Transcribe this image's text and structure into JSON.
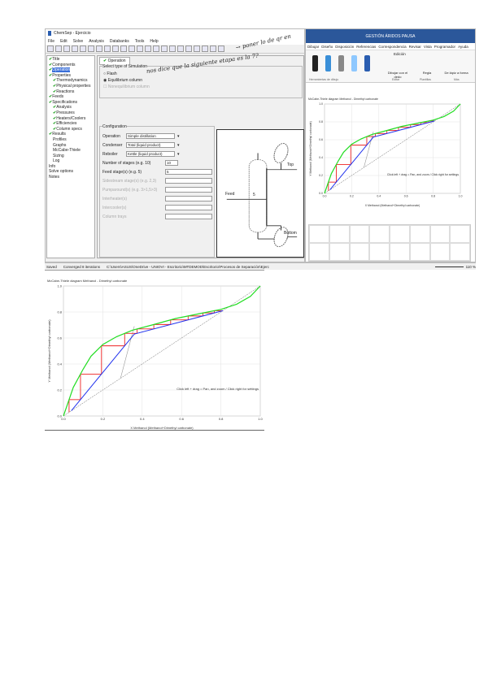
{
  "app": {
    "title": "ChemSep - Ejercicio",
    "menu": [
      "File",
      "Edit",
      "Solve",
      "Analysis",
      "Databanks",
      "Tools",
      "Help"
    ],
    "tree": [
      {
        "l": "Title",
        "c": 1,
        "d": 0
      },
      {
        "l": "Components",
        "c": 1,
        "d": 0
      },
      {
        "l": "Operation",
        "c": 1,
        "d": 0,
        "s": 1
      },
      {
        "l": "Properties",
        "c": 1,
        "d": 0
      },
      {
        "l": "Thermodynamics",
        "c": 1,
        "d": 1
      },
      {
        "l": "Physical properties",
        "c": 1,
        "d": 1
      },
      {
        "l": "Reactions",
        "c": 1,
        "d": 1
      },
      {
        "l": "Feeds",
        "c": 1,
        "d": 0
      },
      {
        "l": "Specifications",
        "c": 1,
        "d": 0
      },
      {
        "l": "Analysis",
        "c": 1,
        "d": 1
      },
      {
        "l": "Pressures",
        "c": 1,
        "d": 1
      },
      {
        "l": "Heaters/Coolers",
        "c": 1,
        "d": 1
      },
      {
        "l": "Efficiencies",
        "c": 1,
        "d": 1
      },
      {
        "l": "Column specs",
        "c": 1,
        "d": 1
      },
      {
        "l": "Results",
        "c": 1,
        "d": 0
      },
      {
        "l": "Profiles",
        "c": 0,
        "d": 1
      },
      {
        "l": "Graphs",
        "c": 0,
        "d": 1
      },
      {
        "l": "McCabe-Thiele",
        "c": 0,
        "d": 1
      },
      {
        "l": "Sizing",
        "c": 0,
        "d": 1
      },
      {
        "l": "Log",
        "c": 0,
        "d": 1
      },
      {
        "l": "Info",
        "c": 0,
        "d": 0
      },
      {
        "l": "Solve options",
        "c": 0,
        "d": 0
      },
      {
        "l": "Notes",
        "c": 0,
        "d": 0
      }
    ],
    "tab": "Operation",
    "type_group": "Select type of Simulation",
    "radios": [
      "Flash",
      "Equilibrium column",
      "Nonequilibrium column"
    ],
    "config_group": "Configuration",
    "fields": [
      {
        "label": "Operation",
        "value": "Simple distillation",
        "kind": "select"
      },
      {
        "label": "Condenser",
        "value": "Total (liquid product)",
        "kind": "select"
      },
      {
        "label": "Reboiler",
        "value": "Kettle (liquid product)",
        "kind": "select"
      },
      {
        "label": "Number of stages (e.g. 10)",
        "value": "10",
        "kind": "short"
      },
      {
        "label": "Feed stage(s) (e.g. 5)",
        "value": "5",
        "kind": "text"
      },
      {
        "label": "Sidestream stage(s) (e.g. 2,3)",
        "value": "",
        "kind": "text",
        "dis": 1
      },
      {
        "label": "Pumparound(s) (e.g. 3>1,5>3)",
        "value": "",
        "kind": "text",
        "dis": 1
      },
      {
        "label": "Interheater(s)",
        "value": "",
        "kind": "text",
        "dis": 1
      },
      {
        "label": "Intercooler(s)",
        "value": "",
        "kind": "text",
        "dis": 1
      },
      {
        "label": "Column trays",
        "value": "",
        "kind": "text",
        "dis": 1
      }
    ],
    "diagram": {
      "feed": "Feed",
      "top": "Top",
      "bottom": "Bottom",
      "stage": "5"
    }
  },
  "status": {
    "state": "Saved",
    "msg": "Converged 8 iterations",
    "path": "C:\\Users\\ASUS\\OneDrive - UNIOVI - Escritorio\\MTDEMOD\\Escritorio\\Procesos de Separación\\Ejercicio.sep",
    "zoom": "110 %"
  },
  "word": {
    "title": "GESTIÓN ÁRIDOS PAUSA",
    "tabs": [
      "Dibujar",
      "Diseño",
      "Disposición",
      "Referencias",
      "Correspondencia",
      "Revisar",
      "Vista",
      "Programador",
      "Ayuda"
    ],
    "editing": "Edición",
    "buttons": [
      "Dibujar con el dedo",
      "Regla",
      "De lápiz a forma"
    ],
    "groups": [
      "Herramientas de dibujo",
      "Editar",
      "Plantillas",
      "Más"
    ]
  },
  "notes": [
    "→ poner lo de qr en",
    "nos dice que la siguiente etapa es la 7?"
  ],
  "chart_data": [
    {
      "type": "line",
      "title": "McCabe-Thiele diagram Methanol - Dimethyl carbonate",
      "xlabel": "X Methanol (Methanol+Dimethyl carbonate)",
      "ylabel": "Y Methanol (Methanol+Dimethyl carbonate)",
      "xlim": [
        0,
        1
      ],
      "ylim": [
        0,
        1
      ],
      "ticks": [
        "0.0",
        "0.2",
        "0.4",
        "0.6",
        "0.8",
        "1.0"
      ],
      "info": "Click left + drag = Pan, and zoom / Click right for settings",
      "equilibrium": [
        [
          0,
          0
        ],
        [
          0.05,
          0.22
        ],
        [
          0.1,
          0.36
        ],
        [
          0.14,
          0.46
        ],
        [
          0.2,
          0.55
        ],
        [
          0.27,
          0.61
        ],
        [
          0.35,
          0.66
        ],
        [
          0.45,
          0.7
        ],
        [
          0.57,
          0.75
        ],
        [
          0.7,
          0.79
        ],
        [
          0.8,
          0.82
        ],
        [
          0.88,
          0.86
        ],
        [
          0.95,
          0.92
        ],
        [
          1,
          1
        ]
      ],
      "operating_line": [
        [
          0.04,
          0.04
        ],
        [
          0.36,
          0.63
        ],
        [
          0.81,
          0.81
        ]
      ],
      "q_line": [
        [
          0.29,
          0.29
        ],
        [
          0.36,
          0.69
        ]
      ],
      "xD": 0.81,
      "xB": 0.04
    }
  ]
}
